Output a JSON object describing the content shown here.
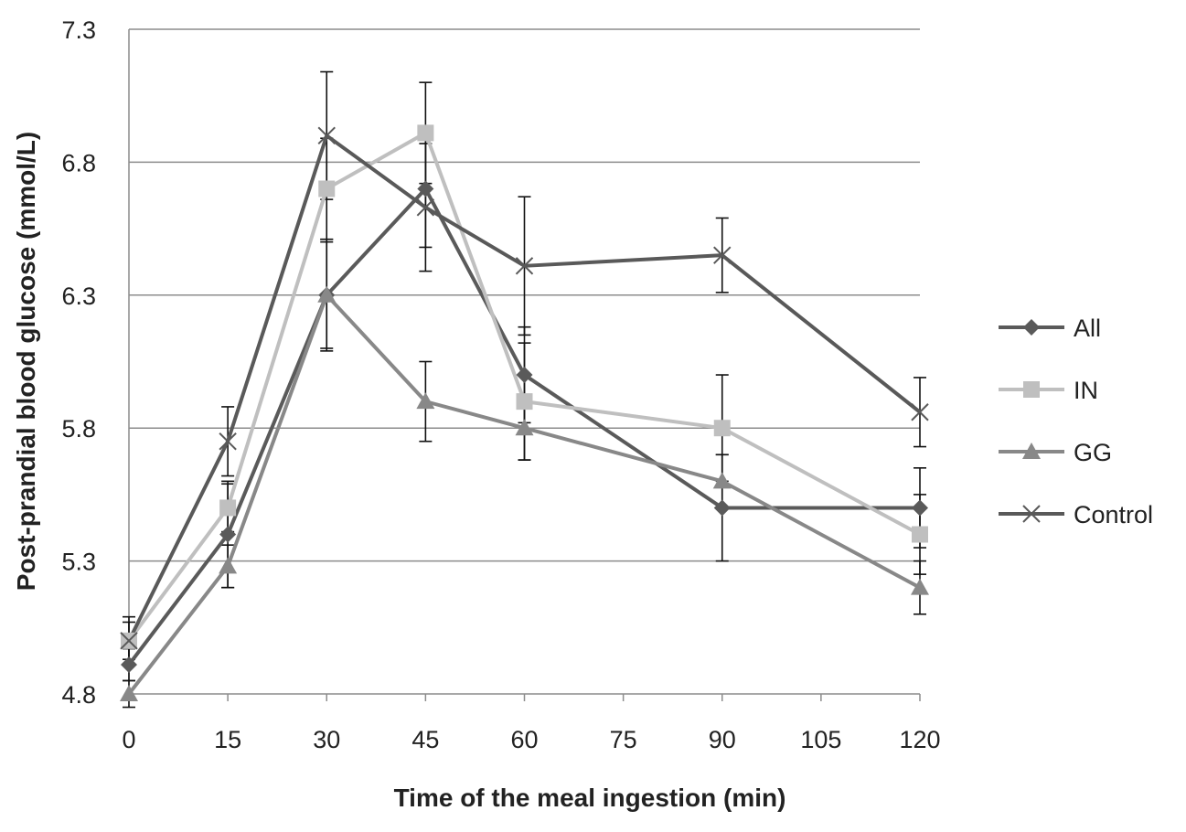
{
  "chart_data": {
    "type": "line",
    "title": "",
    "xlabel": "Time of the meal ingestion  (min)",
    "ylabel": "Post-prandial blood glucose (mmol/L)",
    "x": [
      0,
      15,
      30,
      45,
      60,
      90,
      120
    ],
    "xticks": [
      0,
      15,
      30,
      45,
      60,
      75,
      90,
      105,
      120
    ],
    "xtick_labels": [
      "0",
      "15",
      "30",
      "45",
      "60",
      "75",
      "90",
      "105",
      "120"
    ],
    "xlim": [
      0,
      120
    ],
    "ylim": [
      4.8,
      7.3
    ],
    "yticks": [
      4.8,
      5.3,
      5.8,
      6.3,
      6.8,
      7.3
    ],
    "ytick_labels": [
      "4.8",
      "5.3",
      "5.8",
      "6.3",
      "6.8",
      "7.3"
    ],
    "grid": "horizontal",
    "legend_position": "right",
    "series": [
      {
        "name": "All",
        "marker": "diamond",
        "color": "#5a5a5a",
        "values": [
          4.91,
          5.4,
          6.3,
          6.7,
          6.0,
          5.5,
          5.5
        ],
        "errors": [
          0.06,
          0.2,
          0.2,
          0.22,
          0.18,
          0.2,
          0.15
        ]
      },
      {
        "name": "IN",
        "marker": "square",
        "color": "#bfbfbf",
        "values": [
          5.0,
          5.5,
          6.7,
          6.91,
          5.9,
          5.8,
          5.4
        ],
        "errors": [
          0.07,
          0.09,
          0.19,
          0.19,
          0.22,
          0.2,
          0.15
        ]
      },
      {
        "name": "GG",
        "marker": "triangle",
        "color": "#888888",
        "values": [
          4.8,
          5.28,
          6.3,
          5.9,
          5.8,
          5.6,
          5.2
        ],
        "errors": [
          0.05,
          0.08,
          0.21,
          0.15,
          0.12,
          0.1,
          0.1
        ]
      },
      {
        "name": "Control",
        "marker": "x",
        "color": "#595959",
        "values": [
          5.0,
          5.75,
          6.9,
          6.63,
          6.41,
          6.45,
          5.86
        ],
        "errors": [
          0.09,
          0.13,
          0.24,
          0.24,
          0.26,
          0.14,
          0.13
        ]
      }
    ]
  }
}
